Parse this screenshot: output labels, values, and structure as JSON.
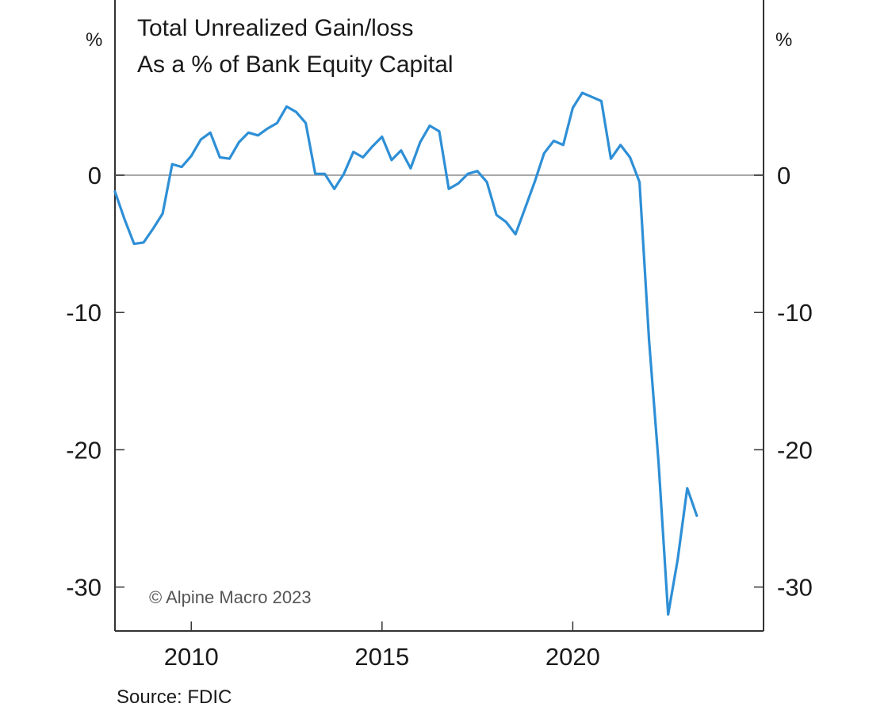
{
  "title_line1": "Total Unrealized Gain/loss",
  "title_line2": "As a % of Bank Equity Capital",
  "left_unit": "%",
  "right_unit": "%",
  "watermark": "© Alpine Macro 2023",
  "source": "Source: FDIC",
  "colors": {
    "line": "#2e8fd6",
    "axis": "#333333",
    "zero_line": "#a9a9a9"
  },
  "chart_data": {
    "type": "line",
    "title": "Total Unrealized Gain/loss As a % of Bank Equity Capital",
    "xlabel": "",
    "ylabel": "%",
    "xlim": [
      2008.0,
      2025.0
    ],
    "ylim": [
      -33,
      13
    ],
    "y_ticks": [
      0,
      -10,
      -20,
      -30
    ],
    "x_ticks": [
      2010,
      2015,
      2020
    ],
    "grid": false,
    "zero_line": true,
    "dual_y_axis": true,
    "x": [
      2008.0,
      2008.25,
      2008.5,
      2008.75,
      2009.0,
      2009.25,
      2009.5,
      2009.75,
      2010.0,
      2010.25,
      2010.5,
      2010.75,
      2011.0,
      2011.25,
      2011.5,
      2011.75,
      2012.0,
      2012.25,
      2012.5,
      2012.75,
      2013.0,
      2013.25,
      2013.5,
      2013.75,
      2014.0,
      2014.25,
      2014.5,
      2014.75,
      2015.0,
      2015.25,
      2015.5,
      2015.75,
      2016.0,
      2016.25,
      2016.5,
      2016.75,
      2017.0,
      2017.25,
      2017.5,
      2017.75,
      2018.0,
      2018.25,
      2018.5,
      2018.75,
      2019.0,
      2019.25,
      2019.5,
      2019.75,
      2020.0,
      2020.25,
      2020.5,
      2020.75,
      2021.0,
      2021.25,
      2021.5,
      2021.75,
      2022.0,
      2022.25,
      2022.5,
      2022.75,
      2023.0,
      2023.25
    ],
    "series": [
      {
        "values": [
          -1.2,
          -3.2,
          -5.0,
          -4.9,
          -3.9,
          -2.8,
          0.8,
          0.6,
          1.4,
          2.6,
          3.1,
          1.3,
          1.2,
          2.4,
          3.1,
          2.9,
          3.4,
          3.8,
          5.0,
          4.6,
          3.8,
          0.1,
          0.1,
          -1.0,
          0.1,
          1.7,
          1.3,
          2.1,
          2.8,
          1.1,
          1.8,
          0.5,
          2.4,
          3.6,
          3.2,
          -1.0,
          -0.6,
          0.1,
          0.3,
          -0.5,
          -2.9,
          -3.4,
          -4.3,
          -2.4,
          -0.5,
          1.6,
          2.5,
          2.2,
          4.9,
          6.0,
          5.7,
          5.4,
          1.2,
          2.2,
          1.3,
          -0.5,
          -12.0,
          -21.0,
          -32.0,
          -28.0,
          -22.8,
          -24.8
        ]
      }
    ]
  }
}
